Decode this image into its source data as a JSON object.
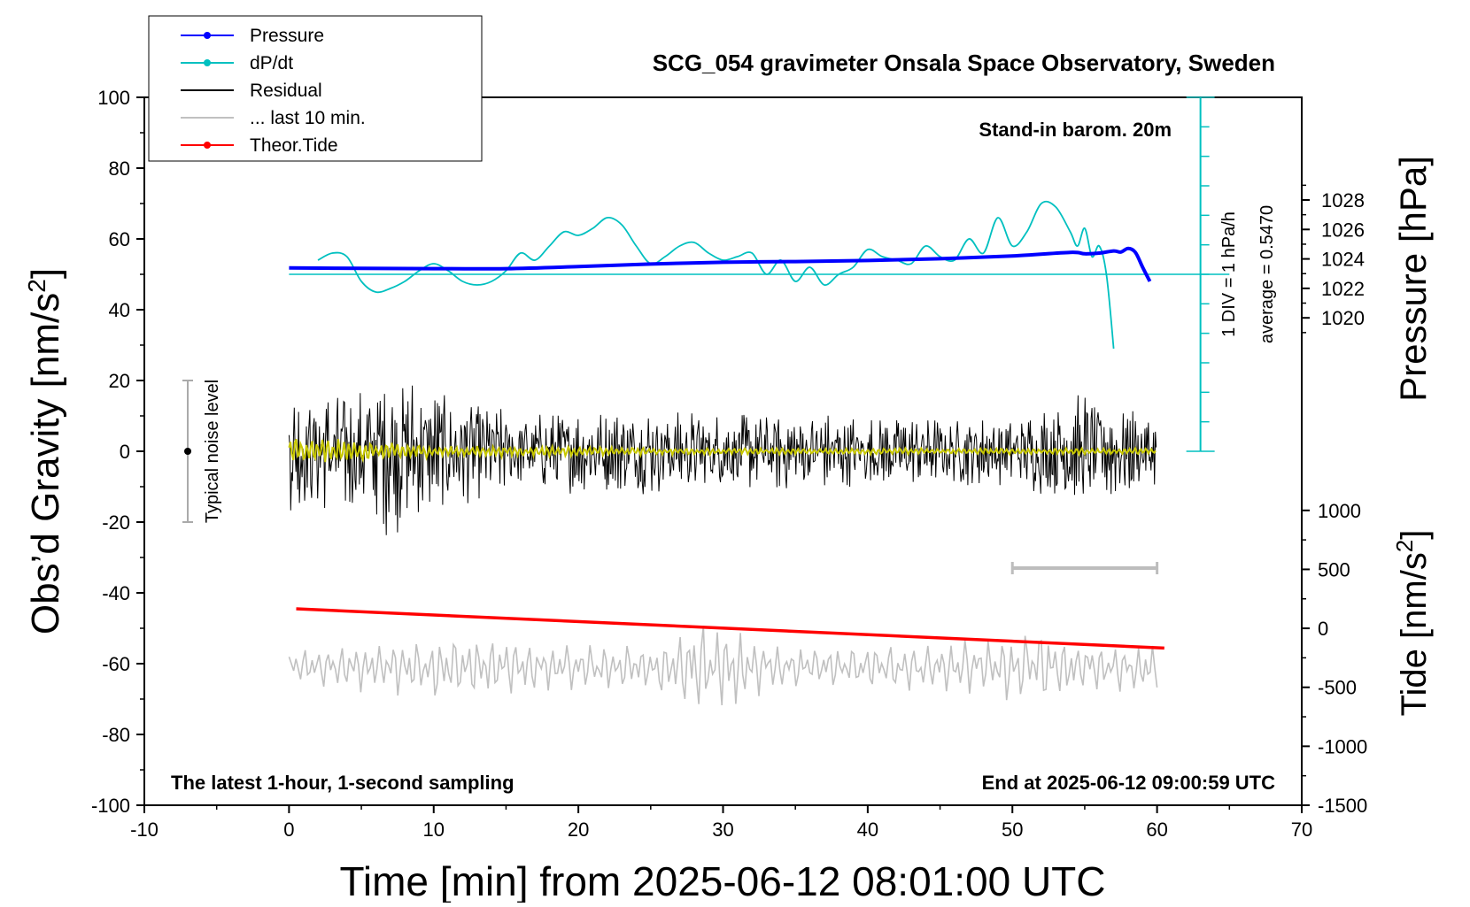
{
  "chart_data": {
    "type": "line",
    "title": "SCG_054 gravimeter Onsala Space Observatory, Sweden",
    "xlabel": "Time [min] from 2025-06-12 08:01:00 UTC",
    "ylabel_left": "Obs’d Gravity [nm/s",
    "ylabel_left_sup": "2",
    "ylabel_left_end": "]",
    "ylabel_right_top": "Pressure [hPa]",
    "ylabel_right_bottom": "Tide [nm/s",
    "ylabel_right_bottom_sup": "2",
    "ylabel_right_bottom_end": "]",
    "xlim": [
      -10,
      70
    ],
    "ylim_left": [
      -100,
      100
    ],
    "x_ticks": [
      "-10",
      "0",
      "10",
      "20",
      "30",
      "40",
      "50",
      "60",
      "70"
    ],
    "y_ticks_left": [
      "100",
      "80",
      "60",
      "40",
      "20",
      "0",
      "-20",
      "-40",
      "-60",
      "-80",
      "-100"
    ],
    "pressure_axis": {
      "ticks": [
        "1028",
        "1026",
        "1024",
        "1022",
        "1020"
      ],
      "values": [
        1028,
        1026,
        1024,
        1022,
        1020
      ],
      "at_left_value": [
        71,
        37.7
      ]
    },
    "tide_axis": {
      "ticks": [
        "1000",
        "500",
        "0",
        "-500",
        "-1000",
        "-1500"
      ],
      "values": [
        1000,
        500,
        0,
        -500,
        -1000,
        -1500
      ],
      "at_left_value": [
        -16.7,
        -100
      ]
    },
    "dpdt_axis": {
      "label": "1 DIV = 1 hPa/h",
      "average_label": "average = 0.5470",
      "baseline_left_value": 50,
      "top_left_value": 100,
      "bottom_left_value": 0,
      "x_min": 63
    },
    "legend": [
      {
        "label": "Pressure",
        "color": "#0000ff",
        "marker": true
      },
      {
        "label": "dP/dt",
        "color": "#00c0c0",
        "marker": true
      },
      {
        "label": "Residual",
        "color": "#000000",
        "marker": false
      },
      {
        "label": "... last 10 min.",
        "color": "#c0c0c0",
        "marker": false
      },
      {
        "label": "Theor.Tide",
        "color": "#ff0000",
        "marker": true
      }
    ],
    "annotations": {
      "stand_in": "Stand-in barom. 20m",
      "latest": "The latest 1-hour, 1-second sampling",
      "end_at": "End at 2025-06-12 09:00:59 UTC",
      "noise_label": "Typical noise level"
    },
    "noise_bar": {
      "x": -7,
      "y_center": 0,
      "half_range": 20
    },
    "last10_bar": {
      "x_start": 50,
      "x_end": 60,
      "y": -33
    },
    "series": [
      {
        "name": "Pressure",
        "color": "#0000ff",
        "x": [
          0,
          5,
          10,
          15,
          20,
          25,
          30,
          35,
          40,
          45,
          50,
          54,
          55,
          56,
          57,
          57.5,
          58,
          58.5,
          59,
          59.5
        ],
        "y": [
          51.8,
          51.7,
          51.6,
          51.6,
          52.2,
          52.9,
          53.4,
          53.6,
          53.9,
          54.4,
          55.2,
          56.2,
          55.8,
          56.0,
          56.6,
          56.3,
          57.3,
          56.2,
          52.0,
          48.0
        ]
      },
      {
        "name": "dP/dt",
        "color": "#00c0c0",
        "x": [
          2,
          3,
          4,
          5,
          6,
          7,
          8,
          9,
          10,
          11,
          12,
          13,
          14,
          15,
          16,
          17,
          18,
          19,
          20,
          21,
          22,
          23,
          24,
          25,
          26,
          27,
          28,
          29,
          30,
          31,
          32,
          33,
          34,
          35,
          36,
          37,
          38,
          39,
          40,
          41,
          42,
          43,
          44,
          45,
          46,
          47,
          48,
          49,
          50,
          51,
          52,
          53,
          54,
          54.5,
          55,
          55.5,
          56,
          56.5,
          57
        ],
        "y": [
          54,
          56,
          55,
          48,
          45,
          46,
          48,
          51,
          53,
          51,
          48,
          47,
          48,
          51,
          56,
          54,
          58,
          62,
          61,
          63,
          66,
          64,
          58,
          53,
          55,
          58,
          59,
          56,
          54,
          55,
          56,
          50,
          54,
          48,
          52,
          47,
          50,
          52,
          57,
          55,
          54,
          53,
          58,
          55,
          54,
          60,
          56,
          66,
          58,
          62,
          70,
          69,
          62,
          58,
          63,
          55,
          58,
          50,
          29
        ]
      },
      {
        "name": "Residual",
        "color": "#000000",
        "x_start": 0,
        "x_end": 60,
        "envelope_x": [
          0,
          5,
          7,
          10,
          15,
          20,
          25,
          30,
          35,
          40,
          45,
          50,
          55,
          60
        ],
        "envelope_y": [
          17,
          18,
          25,
          18,
          12,
          12,
          13,
          11,
          12,
          10,
          10,
          10,
          17,
          10
        ]
      },
      {
        "name": "Residual (smoothed)",
        "color": "#c8c800",
        "x_start": 0,
        "x_end": 60,
        "envelope_x": [
          0,
          5,
          10,
          20,
          30,
          40,
          50,
          60
        ],
        "envelope_y": [
          5,
          3.5,
          2,
          1.5,
          1,
          1,
          1,
          1
        ]
      },
      {
        "name": "... last 10 min.",
        "color": "#c0c0c0",
        "x_start": 0,
        "x_end": 60,
        "center": -61,
        "envelope_x": [
          0,
          5,
          10,
          15,
          20,
          25,
          27,
          30,
          33,
          35,
          40,
          45,
          50,
          52,
          55,
          60
        ],
        "envelope_y": [
          5,
          7,
          9,
          8,
          7,
          6,
          12,
          13,
          8,
          6,
          6,
          7,
          10,
          11,
          7,
          7
        ]
      },
      {
        "name": "Theor.Tide",
        "color": "#ff0000",
        "x": [
          0.5,
          60.5
        ],
        "y": [
          -44.5,
          -55.6
        ]
      }
    ]
  }
}
